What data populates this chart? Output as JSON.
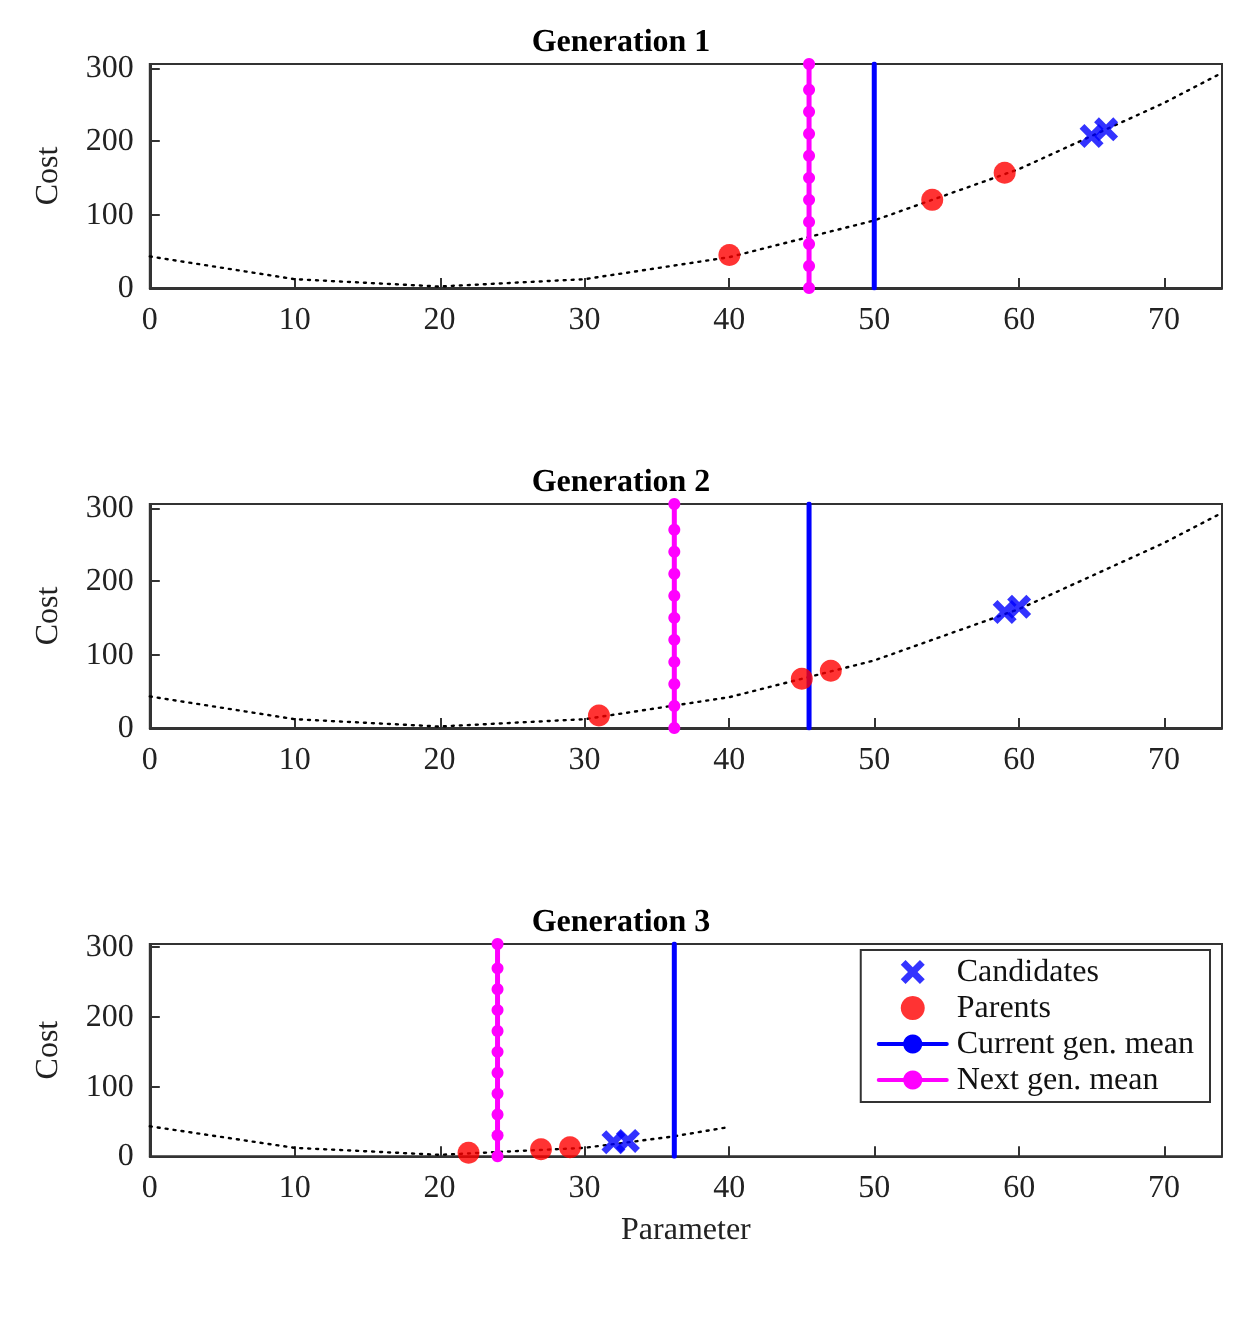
{
  "chart_data": [
    {
      "type": "scatter",
      "title": "Generation 1",
      "ylabel": "Cost",
      "xlim": [
        0,
        74
      ],
      "ylim": [
        0,
        305
      ],
      "xticks": [
        0,
        10,
        20,
        30,
        40,
        50,
        60,
        70
      ],
      "yticks": [
        0,
        100,
        200,
        300
      ],
      "grid": false,
      "legend": false,
      "series": [
        {
          "type": "line",
          "color": "#000000",
          "line_style": "dotted",
          "marker": "none",
          "x": [
            0,
            10,
            20,
            30,
            40,
            50,
            60,
            70,
            74
          ],
          "values": [
            43,
            12,
            2,
            12,
            42,
            92,
            162,
            252,
            293
          ]
        },
        {
          "color": "#0000ff",
          "marker": "cross",
          "x": [
            65,
            66
          ],
          "values": [
            207,
            216
          ]
        },
        {
          "color": "#ff0000",
          "marker": "circle",
          "x": [
            40,
            54,
            59
          ],
          "values": [
            45,
            120,
            157
          ]
        },
        {
          "type": "line",
          "color": "#0000ff",
          "line_style": "solid",
          "marker": "none",
          "x": [
            50,
            50
          ],
          "values": [
            0,
            305
          ]
        },
        {
          "type": "line",
          "color": "#ff00ff",
          "line_style": "solid",
          "marker": "circle",
          "x": [
            45.5,
            45.5,
            45.5,
            45.5,
            45.5,
            45.5,
            45.5,
            45.5,
            45.5,
            45.5,
            45.5
          ],
          "values": [
            0,
            30,
            60,
            90,
            120,
            150,
            180,
            210,
            240,
            270,
            305
          ]
        }
      ]
    },
    {
      "type": "scatter",
      "title": "Generation 2",
      "ylabel": "Cost",
      "xlim": [
        0,
        74
      ],
      "ylim": [
        0,
        305
      ],
      "xticks": [
        0,
        10,
        20,
        30,
        40,
        50,
        60,
        70
      ],
      "yticks": [
        0,
        100,
        200,
        300
      ],
      "grid": false,
      "legend": false,
      "series": [
        {
          "type": "line",
          "color": "#000000",
          "line_style": "dotted",
          "marker": "none",
          "x": [
            0,
            10,
            20,
            30,
            40,
            50,
            60,
            70,
            74
          ],
          "values": [
            43,
            12,
            2,
            12,
            42,
            92,
            162,
            252,
            293
          ]
        },
        {
          "color": "#0000ff",
          "marker": "cross",
          "x": [
            59,
            60
          ],
          "values": [
            158,
            165
          ]
        },
        {
          "color": "#ff0000",
          "marker": "circle",
          "x": [
            31,
            45,
            47
          ],
          "values": [
            17,
            67,
            78
          ]
        },
        {
          "type": "line",
          "color": "#0000ff",
          "line_style": "solid",
          "marker": "none",
          "x": [
            45.5,
            45.5
          ],
          "values": [
            0,
            305
          ]
        },
        {
          "type": "line",
          "color": "#ff00ff",
          "line_style": "solid",
          "marker": "circle",
          "x": [
            36.2,
            36.2,
            36.2,
            36.2,
            36.2,
            36.2,
            36.2,
            36.2,
            36.2,
            36.2,
            36.2
          ],
          "values": [
            0,
            30,
            60,
            90,
            120,
            150,
            180,
            210,
            240,
            270,
            305
          ]
        }
      ]
    },
    {
      "type": "scatter",
      "title": "Generation 3",
      "xlabel": "Parameter",
      "ylabel": "Cost",
      "xlim": [
        0,
        74
      ],
      "ylim": [
        0,
        305
      ],
      "xticks": [
        0,
        10,
        20,
        30,
        40,
        50,
        60,
        70
      ],
      "yticks": [
        0,
        100,
        200,
        300
      ],
      "grid": false,
      "legend": "top right",
      "series": [
        {
          "type": "line",
          "color": "#000000",
          "line_style": "dotted",
          "marker": "none",
          "x": [
            0,
            10,
            20,
            30,
            36,
            40
          ],
          "values": [
            43,
            12,
            2,
            12,
            28,
            42
          ]
        },
        {
          "name": "Candidates",
          "color": "#0000ff",
          "marker": "cross",
          "x": [
            32,
            33
          ],
          "values": [
            20,
            22
          ]
        },
        {
          "name": "Parents",
          "color": "#ff0000",
          "marker": "circle",
          "x": [
            22,
            27,
            29
          ],
          "values": [
            5,
            10,
            13
          ]
        },
        {
          "name": "Current gen. mean",
          "type": "line",
          "color": "#0000ff",
          "line_style": "solid",
          "marker": "none",
          "x": [
            36.2,
            36.2
          ],
          "values": [
            0,
            305
          ]
        },
        {
          "name": "Next gen. mean",
          "type": "line",
          "color": "#ff00ff",
          "line_style": "solid",
          "marker": "circle",
          "x": [
            24,
            24,
            24,
            24,
            24,
            24,
            24,
            24,
            24,
            24,
            24
          ],
          "values": [
            0,
            30,
            60,
            90,
            120,
            150,
            180,
            210,
            240,
            270,
            305
          ]
        }
      ]
    }
  ]
}
